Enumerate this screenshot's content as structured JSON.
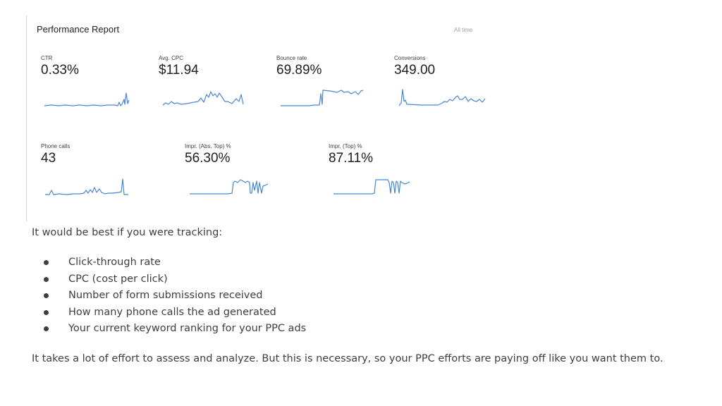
{
  "report": {
    "title": "Performance Report",
    "date_range": "All time",
    "metrics": [
      {
        "label": "CTR",
        "value": "0.33%"
      },
      {
        "label": "Avg. CPC",
        "value": "$11.94"
      },
      {
        "label": "Bounce rate",
        "value": "69.89%"
      },
      {
        "label": "Conversions",
        "value": "349.00"
      },
      {
        "label": "Phone calls",
        "value": "43"
      },
      {
        "label": "Impr. (Abs. Top) %",
        "value": "56.30%"
      },
      {
        "label": "Impr. (Top) %",
        "value": "87.11%"
      }
    ],
    "sparkline_color": "#4a86d4"
  },
  "article": {
    "intro": "It would be best if you were tracking:",
    "bullets": [
      "Click-through rate",
      "CPC (cost per click)",
      "Number of form submissions received",
      "How many phone calls the ad generated",
      "Your current keyword ranking for your PPC ads"
    ],
    "outro": "It takes a lot of effort to assess and analyze. But this is necessary, so your PPC efforts are paying off like you want them to."
  }
}
